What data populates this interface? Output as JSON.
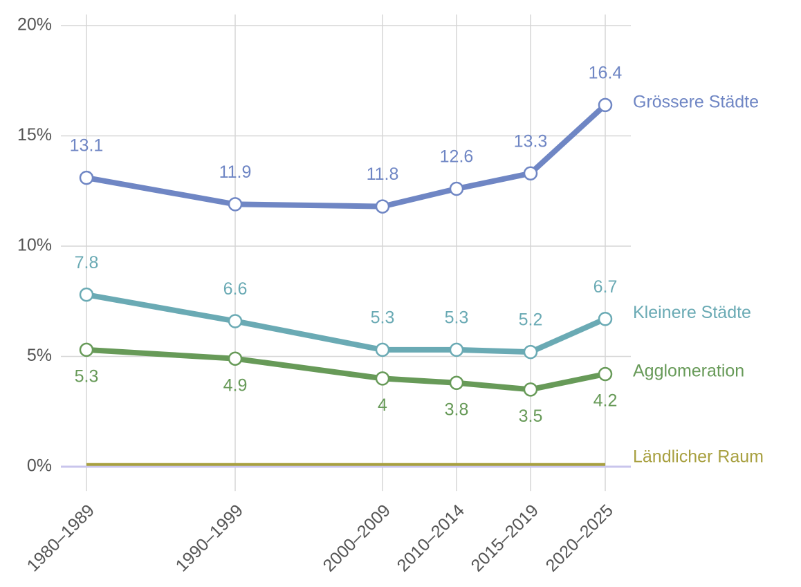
{
  "chart_data": {
    "type": "line",
    "categories": [
      "1980–1989",
      "1990–1999",
      "2000–2009",
      "2010–2014",
      "2015–2019",
      "2020–2025"
    ],
    "series": [
      {
        "name": "Grössere Städte",
        "color": "#6f86c4",
        "values": [
          13.1,
          11.9,
          11.8,
          12.6,
          13.3,
          16.4
        ]
      },
      {
        "name": "Kleinere Städte",
        "color": "#6aaab4",
        "values": [
          7.8,
          6.6,
          5.3,
          5.3,
          5.2,
          6.7
        ]
      },
      {
        "name": "Agglomeration",
        "color": "#679a58",
        "values": [
          5.3,
          4.9,
          4,
          3.8,
          3.5,
          4.2
        ]
      },
      {
        "name": "Ländlicher Raum",
        "color": "#a8a040",
        "values": [
          0.1,
          0.1,
          0.1,
          0.1,
          0.1,
          0.1
        ],
        "markers": false,
        "data_labels": false
      }
    ],
    "ylim": [
      -1.1,
      20.5
    ],
    "yticks": [
      {
        "value": 0,
        "label": "0%"
      },
      {
        "value": 5,
        "label": "5%"
      },
      {
        "value": 10,
        "label": "10%"
      },
      {
        "value": 15,
        "label": "15%"
      },
      {
        "value": 20,
        "label": "20%"
      }
    ],
    "grid": true
  }
}
